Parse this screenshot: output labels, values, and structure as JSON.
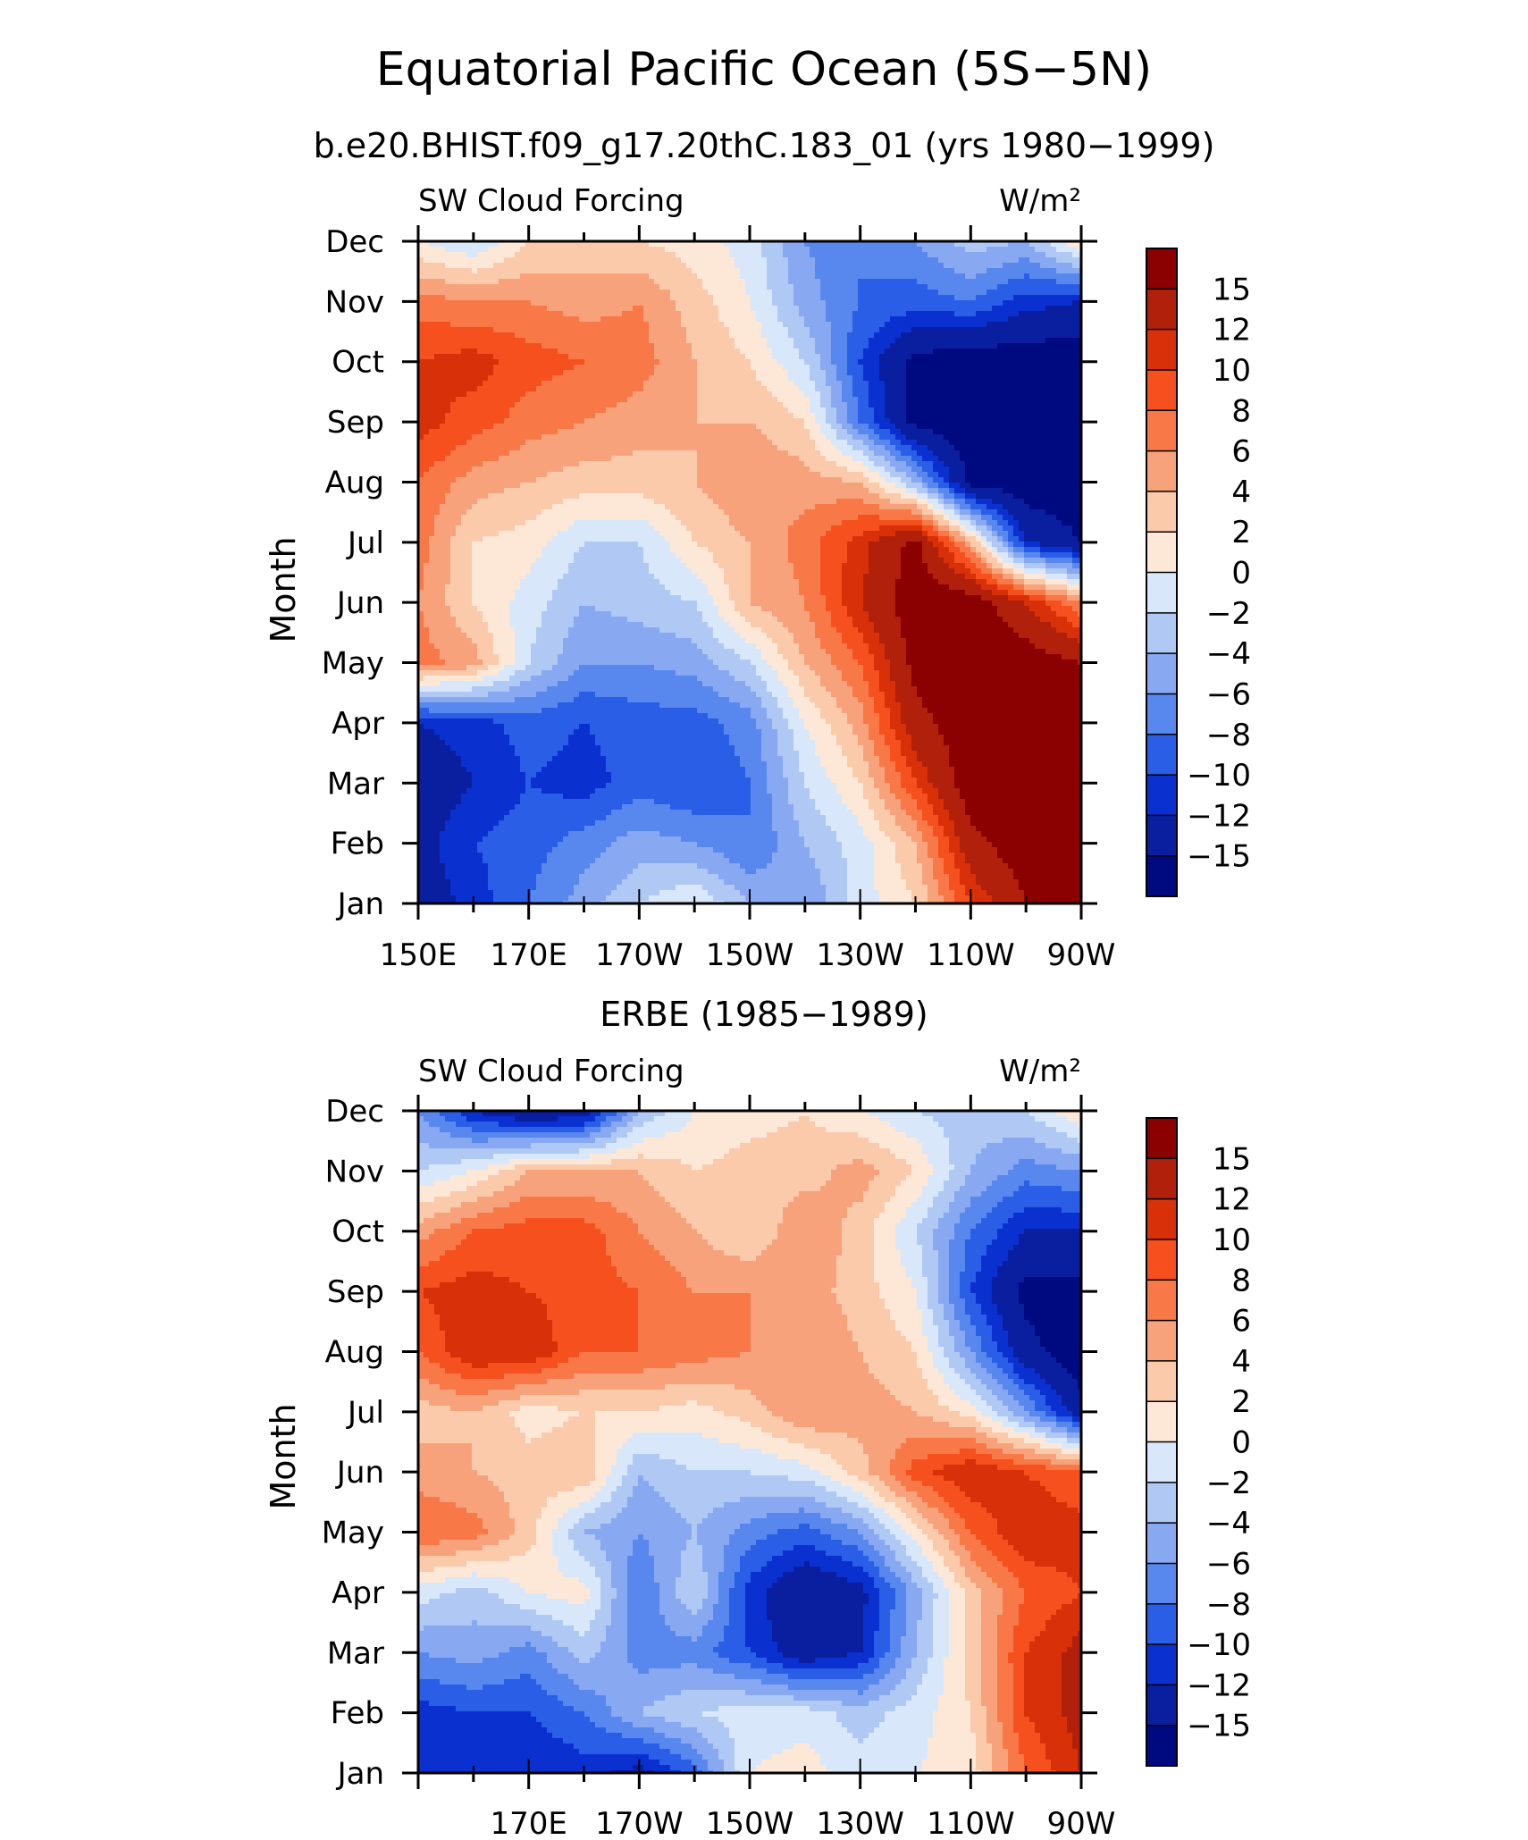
{
  "figure": {
    "title": "Equatorial Pacific Ocean (5S−5N)",
    "colorbar_levels": [
      "15",
      "12",
      "10",
      "8",
      "6",
      "4",
      "2",
      "0",
      "−2",
      "−4",
      "−6",
      "−8",
      "−10",
      "−12",
      "−15"
    ],
    "colorbar_colors": [
      "#8b0000",
      "#b0200a",
      "#d83008",
      "#f5501e",
      "#f87848",
      "#f8a27c",
      "#fbcaab",
      "#fde8d8",
      "#d8e8fa",
      "#b0c8f4",
      "#88a8f2",
      "#5888ee",
      "#2a5ee6",
      "#0a30d0",
      "#0a1ea0",
      "#000a80"
    ]
  },
  "panels": [
    {
      "subtitle": "b.e20.BHIST.f09_g17.20thC.183_01 (yrs 1980−1999)",
      "left_label": "SW Cloud Forcing",
      "units": "W/m²",
      "ylabel": "Month",
      "y_ticks": [
        "Dec",
        "Nov",
        "Oct",
        "Sep",
        "Aug",
        "Jul",
        "Jun",
        "May",
        "Apr",
        "Mar",
        "Feb",
        "Jan"
      ],
      "x_ticks": [
        "150E",
        "170E",
        "170W",
        "150W",
        "130W",
        "110W",
        "90W"
      ]
    },
    {
      "subtitle": "ERBE (1985−1989)",
      "left_label": "SW Cloud Forcing",
      "units": "W/m²",
      "ylabel": "Month",
      "y_ticks": [
        "Dec",
        "Nov",
        "Oct",
        "Sep",
        "Aug",
        "Jul",
        "Jun",
        "May",
        "Apr",
        "Mar",
        "Feb",
        "Jan"
      ],
      "x_ticks": [
        "170E",
        "170W",
        "150W",
        "130W",
        "110W",
        "90W"
      ]
    }
  ],
  "chart_data": [
    {
      "type": "heatmap",
      "title": "b.e20.BHIST.f09_g17.20thC.183_01 (yrs 1980−1999)",
      "xlabel": "",
      "ylabel": "Month",
      "units": "W/m²",
      "x": [
        "150E",
        "160E",
        "170E",
        "180",
        "170W",
        "160W",
        "150W",
        "140W",
        "130W",
        "120W",
        "110W",
        "100W",
        "90W"
      ],
      "y": [
        "Jan",
        "Feb",
        "Mar",
        "Apr",
        "May",
        "Jun",
        "Jul",
        "Aug",
        "Sep",
        "Oct",
        "Nov",
        "Dec"
      ],
      "z": [
        [
          -14,
          -11,
          -8,
          -5,
          -2,
          0,
          -4,
          -6,
          -1,
          2,
          10,
          15,
          17
        ],
        [
          -13,
          -10,
          -9,
          -7,
          -5,
          -6,
          -8,
          -4,
          -1,
          4,
          14,
          17,
          17
        ],
        [
          -14,
          -12,
          -10,
          -11,
          -9,
          -10,
          -8,
          -2,
          2,
          10,
          17,
          17,
          17
        ],
        [
          -12,
          -11,
          -9,
          -10,
          -9,
          -9,
          -7,
          0,
          5,
          14,
          17,
          17,
          17
        ],
        [
          7,
          5,
          -2,
          -6,
          -6,
          -5,
          -2,
          4,
          8,
          16,
          17,
          17,
          15
        ],
        [
          6,
          2,
          -1,
          -4,
          -3,
          -2,
          4,
          6,
          12,
          17,
          17,
          12,
          6
        ],
        [
          7,
          2,
          1,
          -2,
          -2,
          2,
          4,
          7,
          11,
          16,
          4,
          -12,
          -15
        ],
        [
          8,
          5,
          4,
          3,
          3,
          4,
          6,
          5,
          4,
          -4,
          -16,
          -17,
          -17
        ],
        [
          11,
          9,
          7,
          6,
          5,
          4,
          4,
          2,
          -8,
          -16,
          -17,
          -17,
          -17
        ],
        [
          10,
          11,
          9,
          8,
          7,
          4,
          2,
          -2,
          -10,
          -16,
          -17,
          -17,
          -17
        ],
        [
          7,
          6,
          6,
          5,
          6,
          3,
          0,
          -5,
          -8,
          -9,
          -8,
          -11,
          -12
        ],
        [
          0,
          -2,
          2,
          3,
          2,
          1,
          -1,
          -6,
          -8,
          -6,
          -3,
          -4,
          2
        ]
      ],
      "levels": [
        -15,
        -12,
        -10,
        -8,
        -6,
        -4,
        -2,
        0,
        2,
        4,
        6,
        8,
        10,
        12,
        15
      ]
    },
    {
      "type": "heatmap",
      "title": "ERBE (1985−1989)",
      "xlabel": "",
      "ylabel": "Month",
      "units": "W/m²",
      "x": [
        "150E",
        "160E",
        "170E",
        "180",
        "170W",
        "160W",
        "150W",
        "140W",
        "130W",
        "120W",
        "110W",
        "100W",
        "90W"
      ],
      "y": [
        "Jan",
        "Feb",
        "Mar",
        "Apr",
        "May",
        "Jun",
        "Jul",
        "Aug",
        "Sep",
        "Oct",
        "Nov",
        "Dec"
      ],
      "z": [
        [
          -12,
          -11,
          -12,
          -11,
          -13,
          -9,
          0,
          1,
          -1,
          0,
          1,
          8,
          12
        ],
        [
          -11,
          -10,
          -10,
          -8,
          -4,
          -2,
          -1,
          -1,
          -3,
          -1,
          2,
          10,
          13
        ],
        [
          -6,
          -5,
          -7,
          -3,
          -7,
          -7,
          -10,
          -14,
          -12,
          -4,
          3,
          10,
          13
        ],
        [
          -1,
          -3,
          0,
          1,
          -8,
          -2,
          -11,
          -15,
          -13,
          -5,
          3,
          8,
          10
        ],
        [
          8,
          7,
          3,
          -4,
          -6,
          -4,
          -7,
          -9,
          -6,
          1,
          8,
          12,
          11
        ],
        [
          5,
          4,
          3,
          4,
          -4,
          -2,
          -2,
          -1,
          3,
          9,
          12,
          10,
          8
        ],
        [
          3,
          4,
          1,
          2,
          2,
          1,
          3,
          6,
          5,
          4,
          1,
          -6,
          -14
        ],
        [
          8,
          12,
          12,
          8,
          8,
          7,
          6,
          6,
          4,
          2,
          -6,
          -14,
          -17
        ],
        [
          10,
          11,
          10,
          9,
          8,
          6,
          6,
          5,
          3,
          0,
          -10,
          -16,
          -16
        ],
        [
          5,
          8,
          9,
          9,
          6,
          4,
          2,
          6,
          3,
          -2,
          -8,
          -12,
          -12
        ],
        [
          -2,
          0,
          4,
          4,
          4,
          2,
          3,
          3,
          5,
          2,
          -4,
          -7,
          -6
        ],
        [
          -6,
          -12,
          -15,
          -14,
          -4,
          0,
          1,
          2,
          0,
          -2,
          -3,
          -2,
          2
        ]
      ],
      "levels": [
        -15,
        -12,
        -10,
        -8,
        -6,
        -4,
        -2,
        0,
        2,
        4,
        6,
        8,
        10,
        12,
        15
      ]
    }
  ]
}
